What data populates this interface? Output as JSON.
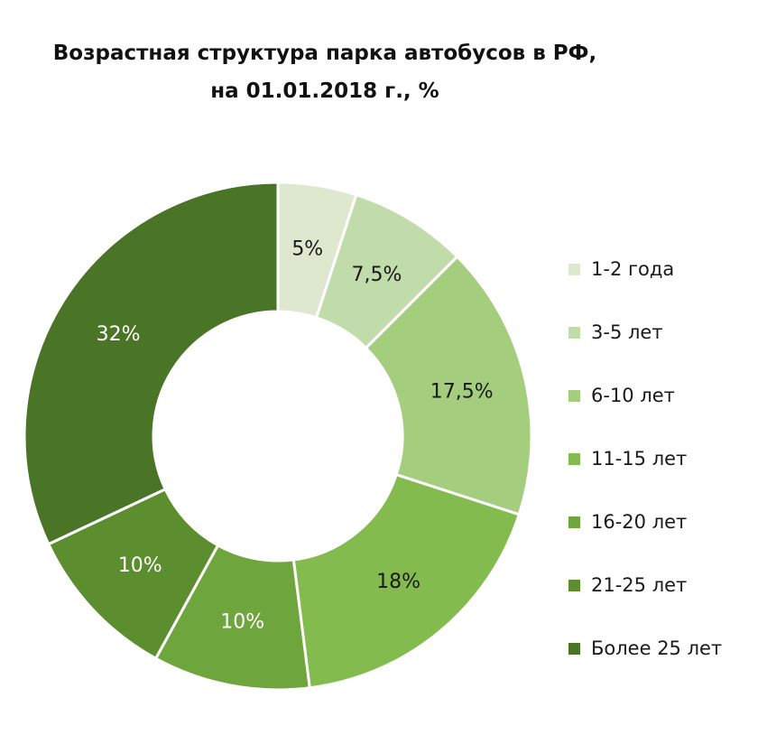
{
  "chart_data": {
    "type": "pie",
    "variant": "donut",
    "title_lines": [
      "Возрастная структура парка автобусов в РФ,",
      "на 01.01.2018 г., %"
    ],
    "categories": [
      "1-2 года",
      "3-5 лет",
      "6-10 лет",
      "11-15 лет",
      "16-20 лет",
      "21-25 лет",
      "Более 25 лет"
    ],
    "values": [
      5,
      7.5,
      17.5,
      18,
      10,
      10,
      32
    ],
    "data_labels": [
      "5%",
      "7,5%",
      "17,5%",
      "18%",
      "10%",
      "10%",
      "32%"
    ],
    "colors": [
      "#dde8cf",
      "#c2dbaa",
      "#a5cd7e",
      "#84bb4f",
      "#6fa53d",
      "#5c8e2f",
      "#4a7526"
    ],
    "label_colors": [
      "#1a1a1a",
      "#1a1a1a",
      "#1a1a1a",
      "#1a1a1a",
      "#ffffff",
      "#ffffff",
      "#ffffff"
    ],
    "legend_position": "right",
    "start": "top",
    "direction": "clockwise"
  }
}
